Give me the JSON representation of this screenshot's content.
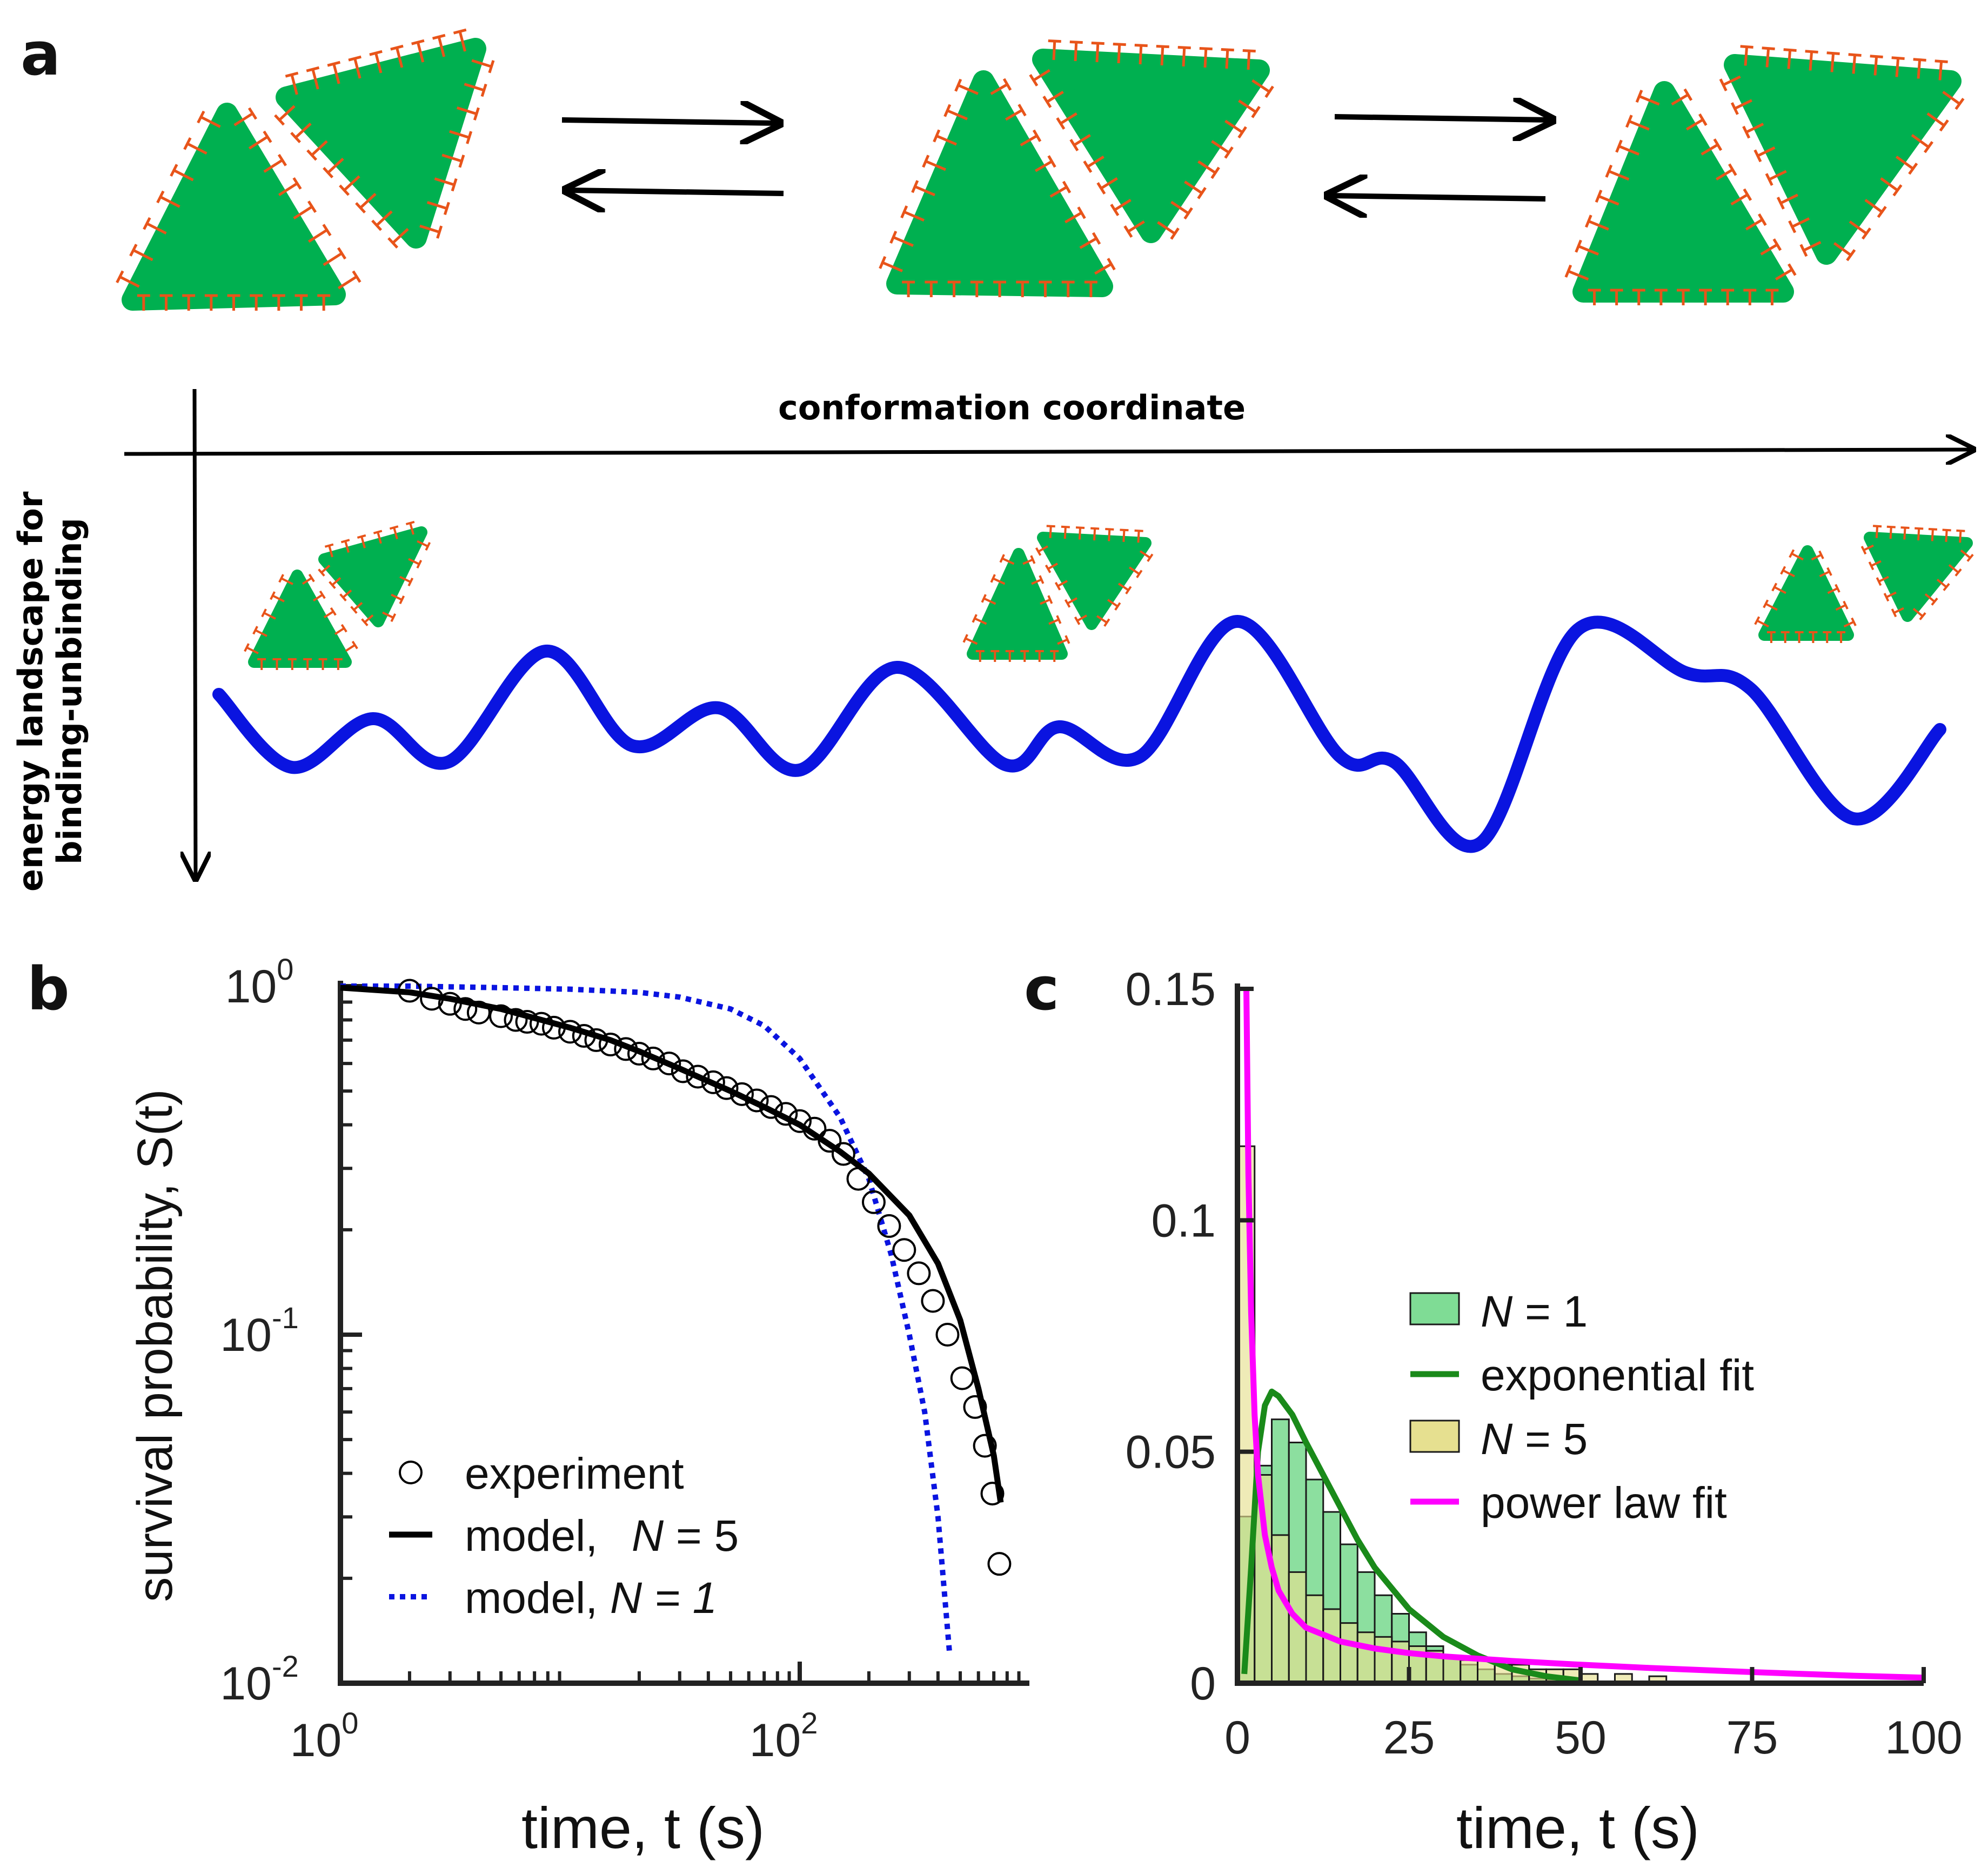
{
  "panels": {
    "a": "a",
    "b": "b",
    "c": "c"
  },
  "schematic": {
    "x_axis_label": "conformation coordinate",
    "y_axis_label_line1": "energy landscape for",
    "y_axis_label_line2": "binding-unbinding",
    "colors": {
      "particle": "#00b050",
      "linker": "#e8541a",
      "landscape": "#0a14e0"
    }
  },
  "chart_data": [
    {
      "id": "b",
      "type": "line",
      "scale": "log-log",
      "title": "",
      "xlabel": "time, t  (s)",
      "ylabel": "survival probability, S(t)",
      "xlim": [
        1,
        1000
      ],
      "ylim": [
        0.01,
        1
      ],
      "x_ticks": [
        {
          "value": 1,
          "base": "10",
          "exp": "0"
        },
        {
          "value": 100,
          "base": "10",
          "exp": "2"
        }
      ],
      "y_ticks": [
        {
          "value": 1,
          "base": "10",
          "exp": "0"
        },
        {
          "value": 0.1,
          "base": "10",
          "exp": "-1"
        },
        {
          "value": 0.01,
          "base": "10",
          "exp": "-2"
        }
      ],
      "legend": {
        "placement": "bottom-left",
        "entries": [
          {
            "label": "experiment",
            "style": "marker-circle"
          },
          {
            "label_prefix": "model,  ",
            "label_var": "N",
            "label_value": " = 5",
            "style": "solid",
            "color": "#000000"
          },
          {
            "label_prefix": "model, ",
            "label_var": "N = 1",
            "label_value": "",
            "style": "dotted",
            "color": "#0a14e0"
          }
        ]
      },
      "series": [
        {
          "name": "experiment",
          "style": "marker-circle",
          "color": "#000000",
          "x": [
            2.0,
            2.5,
            3.0,
            3.5,
            4.0,
            5.0,
            5.8,
            6.5,
            7.5,
            8.5,
            10,
            11.5,
            13,
            15,
            17.5,
            20,
            23,
            27,
            31,
            36,
            42,
            48,
            56,
            65,
            75,
            87,
            100,
            116,
            135,
            155,
            180,
            210,
            245,
            285,
            330,
            380,
            440,
            510,
            580,
            640,
            690,
            740
          ],
          "y": [
            0.97,
            0.92,
            0.89,
            0.86,
            0.84,
            0.82,
            0.8,
            0.79,
            0.78,
            0.76,
            0.74,
            0.72,
            0.7,
            0.68,
            0.66,
            0.64,
            0.62,
            0.6,
            0.57,
            0.55,
            0.53,
            0.51,
            0.49,
            0.47,
            0.45,
            0.43,
            0.41,
            0.39,
            0.36,
            0.33,
            0.28,
            0.24,
            0.205,
            0.175,
            0.15,
            0.125,
            0.1,
            0.075,
            0.062,
            0.048,
            0.035,
            0.022
          ]
        },
        {
          "name": "model, N = 5",
          "style": "solid",
          "color": "#000000",
          "x": [
            1,
            2,
            3,
            5,
            7,
            10,
            15,
            20,
            30,
            50,
            70,
            100,
            150,
            200,
            300,
            400,
            500,
            600,
            700,
            750
          ],
          "y": [
            0.99,
            0.96,
            0.92,
            0.86,
            0.81,
            0.76,
            0.7,
            0.65,
            0.58,
            0.5,
            0.45,
            0.4,
            0.335,
            0.29,
            0.22,
            0.16,
            0.11,
            0.07,
            0.045,
            0.033
          ]
        },
        {
          "name": "model, N = 1",
          "style": "dotted",
          "color": "#0a14e0",
          "x": [
            1,
            2,
            5,
            10,
            20,
            30,
            50,
            70,
            100,
            150,
            200,
            250,
            300,
            350,
            400,
            450
          ],
          "y": [
            1.0,
            1.0,
            0.99,
            0.98,
            0.96,
            0.93,
            0.86,
            0.77,
            0.62,
            0.42,
            0.28,
            0.17,
            0.1,
            0.06,
            0.03,
            0.012
          ]
        }
      ]
    },
    {
      "id": "c",
      "type": "bar",
      "title": "",
      "xlabel": "time, t  (s)",
      "ylabel": "",
      "xlim": [
        0,
        100
      ],
      "ylim": [
        0,
        0.15
      ],
      "x_ticks": [
        "0",
        "25",
        "50",
        "75",
        "100"
      ],
      "y_ticks": [
        "0",
        "0.05",
        "0.1",
        "0.15"
      ],
      "bin_width": 2.5,
      "legend": {
        "placement": "center-right",
        "entries": [
          {
            "label_prefix": " ",
            "label_var": "N",
            "label_value": " = 1",
            "style": "patch",
            "color": "#7fdc95"
          },
          {
            "label": "exponential fit",
            "style": "line",
            "color": "#1a8a1a"
          },
          {
            "label_prefix": " ",
            "label_var": "N",
            "label_value": " = 5",
            "style": "patch",
            "color": "#e6e090"
          },
          {
            "label": "power law fit",
            "style": "line",
            "color": "#ff00ff"
          }
        ]
      },
      "series": [
        {
          "name": "N = 1",
          "style": "bar",
          "color": "#7fdc95",
          "bin_starts": [
            0,
            2.5,
            5,
            7.5,
            10,
            12.5,
            15,
            17.5,
            20,
            22.5,
            25,
            27.5,
            30,
            32.5,
            35,
            37.5,
            40,
            42.5,
            45,
            47.5
          ],
          "values": [
            0.036,
            0.047,
            0.057,
            0.052,
            0.044,
            0.037,
            0.03,
            0.024,
            0.019,
            0.015,
            0.011,
            0.008,
            0.006,
            0.004,
            0.003,
            0.002,
            0.0015,
            0.001,
            0.0008,
            0.0005
          ]
        },
        {
          "name": "N = 5",
          "style": "bar",
          "color": "#e6e090",
          "bin_starts": [
            0,
            2.5,
            5,
            7.5,
            10,
            12.5,
            15,
            17.5,
            20,
            22.5,
            25,
            27.5,
            30,
            32.5,
            35,
            37.5,
            40,
            42.5,
            45,
            47.5,
            50,
            55,
            60
          ],
          "values": [
            0.116,
            0.045,
            0.032,
            0.024,
            0.019,
            0.016,
            0.013,
            0.011,
            0.01,
            0.009,
            0.008,
            0.007,
            0.006,
            0.005,
            0.005,
            0.004,
            0.004,
            0.003,
            0.003,
            0.003,
            0.002,
            0.002,
            0.0015
          ]
        },
        {
          "name": "exponential fit",
          "style": "line",
          "color": "#1a8a1a",
          "x": [
            1,
            2,
            3,
            4,
            5,
            6,
            8,
            10,
            12.5,
            15,
            17.5,
            20,
            25,
            30,
            35,
            40,
            45,
            50
          ],
          "y": [
            0.002,
            0.025,
            0.05,
            0.06,
            0.063,
            0.062,
            0.058,
            0.052,
            0.045,
            0.038,
            0.031,
            0.025,
            0.016,
            0.01,
            0.006,
            0.003,
            0.0015,
            0.0006
          ]
        },
        {
          "name": "power law fit",
          "style": "line",
          "color": "#ff00ff",
          "x": [
            1.3,
            1.6,
            2,
            2.5,
            3,
            4,
            5,
            6,
            8,
            10,
            15,
            20,
            25,
            30,
            40,
            50,
            60,
            75,
            90,
            100
          ],
          "y": [
            0.15,
            0.11,
            0.08,
            0.058,
            0.045,
            0.032,
            0.025,
            0.02,
            0.015,
            0.012,
            0.009,
            0.0075,
            0.0065,
            0.0058,
            0.0048,
            0.004,
            0.0033,
            0.0024,
            0.0016,
            0.0012
          ]
        }
      ]
    }
  ]
}
